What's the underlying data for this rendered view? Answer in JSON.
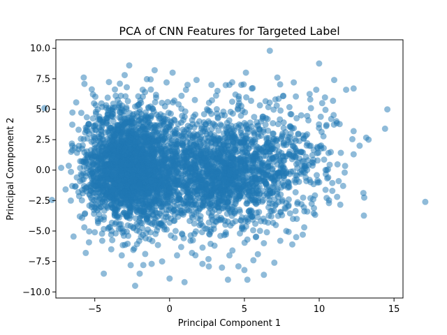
{
  "chart_data": {
    "type": "scatter",
    "title": "PCA of CNN Features for Targeted Label",
    "xlabel": "Principal Component 1",
    "ylabel": "Principal Component 2",
    "xlim": [
      -7.6,
      15.6
    ],
    "ylim": [
      -10.5,
      10.7
    ],
    "xticks": [
      -5,
      0,
      5,
      10,
      15
    ],
    "xtick_labels": [
      "−5",
      "0",
      "5",
      "10",
      "15"
    ],
    "yticks": [
      -10.0,
      -7.5,
      -5.0,
      -2.5,
      0.0,
      2.5,
      5.0,
      7.5,
      10.0
    ],
    "ytick_labels": [
      "−10.0",
      "−7.5",
      "−5.0",
      "−2.5",
      "0.0",
      "2.5",
      "5.0",
      "7.5",
      "10.0"
    ],
    "grid": false,
    "marker_color": "#1f77b4",
    "marker_alpha": 0.5,
    "series": [
      {
        "values": [
          [
            6.7,
            9.8
          ],
          [
            14.4,
            3.4
          ],
          [
            13.3,
            2.5
          ],
          [
            12.7,
            2.0
          ],
          [
            12.3,
            3.2
          ],
          [
            12.3,
            6.7
          ],
          [
            12.3,
            1.3
          ],
          [
            11.8,
            6.6
          ],
          [
            11.7,
            -0.2
          ],
          [
            11.6,
            -1.3
          ],
          [
            11.3,
            -0.9
          ],
          [
            11.2,
            -2.2
          ],
          [
            11.0,
            7.4
          ],
          [
            10.5,
            0.0
          ],
          [
            10.8,
            4.2
          ],
          [
            10.6,
            -0.6
          ],
          [
            10.2,
            5.5
          ],
          [
            9.8,
            6.6
          ],
          [
            9.6,
            -2.4
          ],
          [
            9.2,
            -3.4
          ],
          [
            9.0,
            -4.7
          ],
          [
            9.4,
            5.8
          ],
          [
            8.3,
            7.2
          ],
          [
            8.8,
            4.5
          ],
          [
            8.9,
            -5.3
          ],
          [
            8.5,
            -4.0
          ],
          [
            8.2,
            -6.1
          ],
          [
            7.8,
            -5.0
          ],
          [
            8.1,
            3.0
          ],
          [
            7.6,
            6.1
          ],
          [
            7.2,
            7.6
          ],
          [
            7.7,
            -3.1
          ],
          [
            7.4,
            -5.8
          ],
          [
            7.0,
            -7.6
          ],
          [
            6.9,
            3.0
          ],
          [
            6.8,
            -3.8
          ],
          [
            6.5,
            -5.1
          ],
          [
            6.3,
            -6.0
          ],
          [
            6.1,
            -4.2
          ],
          [
            6.3,
            -8.6
          ],
          [
            5.9,
            -6.9
          ],
          [
            5.6,
            -7.4
          ],
          [
            5.5,
            6.7
          ],
          [
            5.1,
            8.0
          ],
          [
            4.8,
            7.0
          ],
          [
            5.2,
            -5.7
          ],
          [
            5.0,
            -8.2
          ],
          [
            4.7,
            -5.2
          ],
          [
            4.6,
            -7.9
          ],
          [
            5.2,
            -9.0
          ],
          [
            4.4,
            6.2
          ],
          [
            4.2,
            -6.6
          ],
          [
            4.0,
            7.0
          ],
          [
            4.0,
            -7.0
          ],
          [
            3.9,
            -9.0
          ],
          [
            3.5,
            -8.0
          ],
          [
            3.2,
            6.5
          ],
          [
            3.0,
            -6.2
          ],
          [
            2.8,
            7.0
          ],
          [
            2.6,
            -7.3
          ],
          [
            2.5,
            5.0
          ],
          [
            2.2,
            -7.7
          ],
          [
            1.8,
            7.4
          ],
          [
            1.5,
            -6.8
          ],
          [
            1.2,
            7.0
          ],
          [
            1.0,
            -9.2
          ],
          [
            0.8,
            6.1
          ],
          [
            0.5,
            -7.0
          ],
          [
            0.2,
            8.0
          ],
          [
            0.0,
            -8.9
          ],
          [
            -0.2,
            7.2
          ],
          [
            -0.5,
            -7.5
          ],
          [
            -1.0,
            8.2
          ],
          [
            -1.2,
            -7.7
          ],
          [
            -1.8,
            6.6
          ],
          [
            -2.0,
            -8.5
          ],
          [
            -2.3,
            -9.5
          ],
          [
            -2.6,
            -7.8
          ],
          [
            -2.7,
            8.6
          ],
          [
            -3.0,
            7.8
          ],
          [
            -3.2,
            -7.0
          ],
          [
            -3.6,
            6.1
          ],
          [
            -3.9,
            -6.5
          ],
          [
            -4.1,
            4.9
          ],
          [
            -4.5,
            -5.8
          ],
          [
            -4.4,
            -8.5
          ],
          [
            -4.7,
            3.5
          ],
          [
            -5.0,
            -5.1
          ],
          [
            -5.4,
            3.8
          ],
          [
            -5.6,
            -6.8
          ],
          [
            -5.9,
            4.7
          ],
          [
            -5.7,
            -4.7
          ],
          [
            -6.2,
            -0.6
          ],
          [
            -6.0,
            -3.8
          ],
          [
            -5.8,
            -1.9
          ],
          [
            -6.6,
            -2.5
          ],
          [
            -5.5,
            2.6
          ],
          [
            -5.6,
            0.6
          ],
          [
            -5.2,
            -2.8
          ],
          [
            -5.0,
            1.5
          ],
          [
            -4.8,
            -4.0
          ],
          [
            -4.6,
            2.2
          ],
          [
            -4.3,
            -1.2
          ],
          [
            -4.0,
            0.5
          ],
          [
            -3.8,
            -3.1
          ],
          [
            -3.5,
            3.3
          ],
          [
            -3.2,
            -0.4
          ],
          [
            -3.0,
            1.8
          ],
          [
            -2.8,
            -2.2
          ],
          [
            -2.5,
            0.9
          ],
          [
            -2.2,
            2.8
          ],
          [
            -2.0,
            -1.5
          ],
          [
            -1.8,
            0.2
          ],
          [
            -1.5,
            -3.8
          ],
          [
            -1.3,
            1.6
          ],
          [
            -1.0,
            -0.9
          ],
          [
            -0.8,
            3.2
          ],
          [
            -0.5,
            -2.4
          ],
          [
            -0.2,
            0.6
          ],
          [
            0.1,
            -1.1
          ],
          [
            0.4,
            2.1
          ],
          [
            0.7,
            -3.0
          ],
          [
            1.0,
            0.3
          ],
          [
            1.3,
            -1.8
          ],
          [
            1.6,
            1.2
          ],
          [
            2.0,
            -0.5
          ],
          [
            2.4,
            2.6
          ],
          [
            2.8,
            -2.1
          ],
          [
            3.2,
            0.9
          ],
          [
            3.6,
            -1.3
          ],
          [
            4.0,
            1.7
          ],
          [
            4.4,
            -0.2
          ],
          [
            4.8,
            2.3
          ],
          [
            5.2,
            -1.0
          ],
          [
            5.6,
            0.7
          ],
          [
            6.0,
            -2.0
          ],
          [
            6.4,
            1.5
          ],
          [
            6.8,
            -0.7
          ],
          [
            7.2,
            2.0
          ],
          [
            7.6,
            0.3
          ],
          [
            8.0,
            -1.4
          ],
          [
            8.4,
            1.1
          ],
          [
            8.8,
            -0.3
          ],
          [
            9.2,
            2.2
          ],
          [
            9.6,
            0.6
          ],
          [
            10.0,
            -1.0
          ],
          [
            10.3,
            1.8
          ],
          [
            -3.4,
            5.3
          ],
          [
            -2.4,
            4.6
          ],
          [
            -1.4,
            5.1
          ],
          [
            -0.4,
            4.2
          ],
          [
            0.6,
            5.4
          ],
          [
            1.6,
            4.4
          ],
          [
            2.6,
            4.0
          ],
          [
            3.6,
            4.8
          ],
          [
            4.6,
            5.3
          ],
          [
            -3.6,
            -5.2
          ],
          [
            -2.6,
            -4.6
          ],
          [
            -1.6,
            -5.6
          ],
          [
            -0.6,
            -4.4
          ],
          [
            0.4,
            -5.0
          ],
          [
            1.4,
            -5.8
          ],
          [
            2.4,
            -4.8
          ],
          [
            3.4,
            -5.4
          ],
          [
            4.4,
            -4.2
          ],
          [
            5.4,
            -3.6
          ]
        ]
      }
    ]
  }
}
